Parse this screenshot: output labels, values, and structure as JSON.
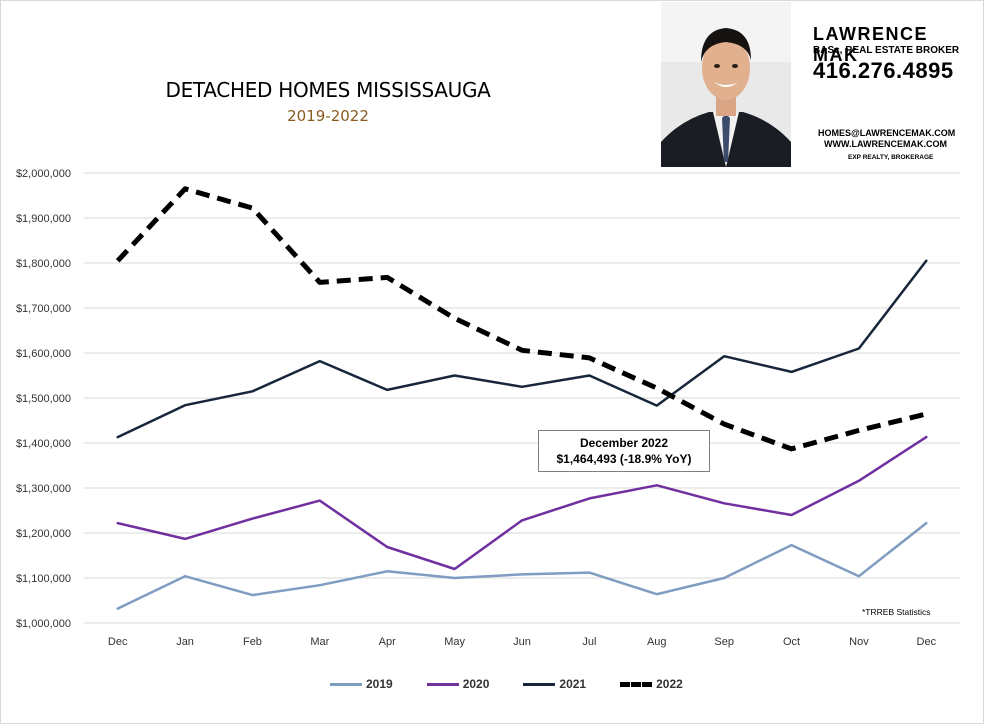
{
  "title": "DETACHED HOMES MISSISSAUGA",
  "subtitle": "2019-2022",
  "agent": {
    "name": "LAWRENCE MAK",
    "role": "BASc, REAL ESTATE BROKER",
    "phone": "416.276.4895",
    "email": "HOMES@LAWRENCEMAK.COM",
    "website": "WWW.LAWRENCEMAK.COM",
    "brokerage": "EXP REALTY, BROKERAGE",
    "photo": "agent-portrait"
  },
  "annotation": {
    "line1": "December 2022",
    "line2": "$1,464,493  (-18.9%  YoY)"
  },
  "source": "*TRREB Statistics",
  "chart_data": {
    "type": "line",
    "title": "DETACHED HOMES MISSISSAUGA",
    "subtitle": "2019-2022",
    "categories": [
      "Dec",
      "Jan",
      "Feb",
      "Mar",
      "Apr",
      "May",
      "Jun",
      "Jul",
      "Aug",
      "Sep",
      "Oct",
      "Nov",
      "Dec"
    ],
    "y_ticks": [
      "$1,000,000",
      "$1,100,000",
      "$1,200,000",
      "$1,300,000",
      "$1,400,000",
      "$1,500,000",
      "$1,600,000",
      "$1,700,000",
      "$1,800,000",
      "$1,900,000",
      "$2,000,000"
    ],
    "ylim": [
      1000000,
      2000000
    ],
    "grid": true,
    "legend": "bottom",
    "series": [
      {
        "name": "2019",
        "color": "#7f9cc1",
        "style": "solid",
        "values": [
          1032000,
          1104000,
          1062000,
          1084000,
          1115000,
          1100000,
          1108000,
          1112000,
          1064000,
          1100000,
          1173000,
          1104000,
          1222000
        ]
      },
      {
        "name": "2020",
        "color": "#7030a0",
        "style": "solid",
        "values": [
          1222000,
          1187000,
          1232000,
          1272000,
          1169000,
          1120000,
          1228000,
          1277000,
          1306000,
          1266000,
          1240000,
          1316000,
          1413000
        ]
      },
      {
        "name": "2021",
        "color": "#17263a",
        "style": "solid",
        "values": [
          1413000,
          1484000,
          1515000,
          1582000,
          1518000,
          1550000,
          1525000,
          1550000,
          1483000,
          1593000,
          1558000,
          1610000,
          1805000
        ]
      },
      {
        "name": "2022",
        "color": "#000000",
        "style": "dashed",
        "values": [
          1805000,
          1965000,
          1922000,
          1757000,
          1768000,
          1677000,
          1606000,
          1589000,
          1522000,
          1442000,
          1387000,
          1428000,
          1464493
        ]
      }
    ]
  }
}
